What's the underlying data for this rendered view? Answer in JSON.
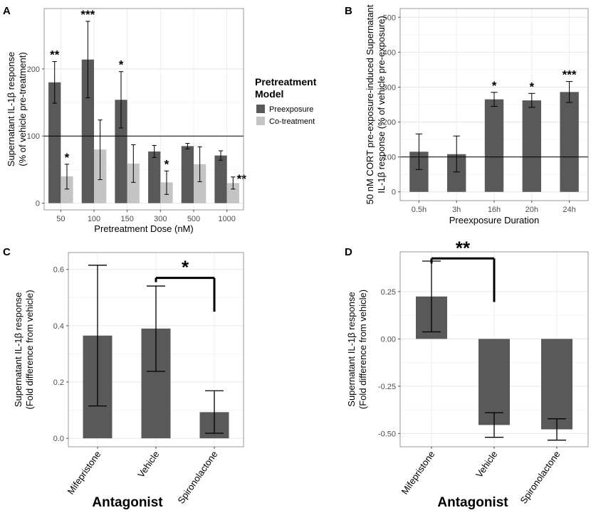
{
  "chart_data": [
    {
      "panel_label": "A",
      "type": "bar",
      "categories": [
        "50",
        "100",
        "150",
        "300",
        "500",
        "1000"
      ],
      "series": [
        {
          "name": "Preexposure",
          "color": "#595959",
          "values": [
            180,
            214,
            154,
            77,
            85,
            71
          ],
          "err_low": [
            149,
            157,
            112,
            68,
            81,
            64
          ],
          "err_high": [
            211,
            271,
            196,
            86,
            89,
            78
          ],
          "stars": [
            "**",
            "***",
            "*",
            "",
            "",
            ""
          ]
        },
        {
          "name": "Co-treatment",
          "color": "#c4c4c4",
          "values": [
            40,
            80,
            59,
            31,
            58,
            30
          ],
          "err_low": [
            21,
            35,
            31,
            13,
            32,
            21
          ],
          "err_high": [
            58,
            124,
            87,
            48,
            84,
            39
          ],
          "stars": [
            "*",
            "",
            "",
            "*",
            "",
            "**"
          ]
        }
      ],
      "yticks": [
        0,
        100,
        200
      ],
      "ylim": [
        -10,
        290
      ],
      "hline": 100,
      "xlabel": "Pretreatment Dose (nM)",
      "ylabel": [
        "Supernatant IL-1β response",
        "(% of vehicle pre-treatment)"
      ],
      "legend": {
        "title": [
          "Pretreatment",
          "Model"
        ],
        "items": [
          "Preexposure",
          "Co-treatment"
        ]
      }
    },
    {
      "panel_label": "B",
      "type": "bar",
      "categories": [
        "0.5h",
        "3h",
        "16h",
        "20h",
        "24h"
      ],
      "series": [
        {
          "name": "Preexposure",
          "color": "#595959",
          "values": [
            115,
            108,
            265,
            262,
            286
          ],
          "err_low": [
            64,
            57,
            245,
            242,
            256
          ],
          "err_high": [
            166,
            160,
            285,
            282,
            316
          ],
          "stars": [
            "",
            "",
            "*",
            "*",
            "***"
          ]
        }
      ],
      "yticks": [
        0,
        100,
        200,
        300,
        400,
        500
      ],
      "ylim": [
        -25,
        525
      ],
      "hline": 100,
      "xlabel": "Preexposure Duration",
      "ylabel": [
        "50 nM CORT pre-exposure-induced Supernatant",
        "IL-1β response (% of vehicle pre-exposure)"
      ]
    },
    {
      "panel_label": "C",
      "type": "bar",
      "categories": [
        "Mifepristone",
        "Vehicle",
        "Spironolactone"
      ],
      "series": [
        {
          "name": "Antagonist",
          "color": "#595959",
          "values": [
            0.365,
            0.39,
            0.093
          ],
          "err_low": [
            0.115,
            0.238,
            0.018
          ],
          "err_high": [
            0.615,
            0.541,
            0.169
          ]
        }
      ],
      "yticks": [
        "0.0",
        "0.2",
        "0.4",
        "0.6"
      ],
      "ylim": [
        -0.03,
        0.66
      ],
      "bracket": {
        "from": "Vehicle",
        "to": "Spironolactone",
        "label": "*"
      },
      "xlabel": "Antagonist",
      "ylabel": [
        "Supernatant IL-1β response",
        "(Fold difference from vehicle)"
      ]
    },
    {
      "panel_label": "D",
      "type": "bar",
      "categories": [
        "Mifepristone",
        "Vehicle",
        "Spironolactone"
      ],
      "series": [
        {
          "name": "Antagonist",
          "color": "#595959",
          "values": [
            0.224,
            -0.455,
            -0.478
          ],
          "err_low": [
            0.037,
            -0.52,
            -0.535
          ],
          "err_high": [
            0.411,
            -0.39,
            -0.422
          ]
        }
      ],
      "yticks": [
        "0.25",
        "0.00",
        "-0.25",
        "-0.50"
      ],
      "ylim": [
        -0.57,
        0.46
      ],
      "bracket": {
        "from": "Mifepristone",
        "to": "Vehicle",
        "label": "**"
      },
      "xlabel": "Antagonist",
      "ylabel": [
        "Supernatant IL-1β response",
        "(Fold difference from vehicle)"
      ]
    }
  ]
}
